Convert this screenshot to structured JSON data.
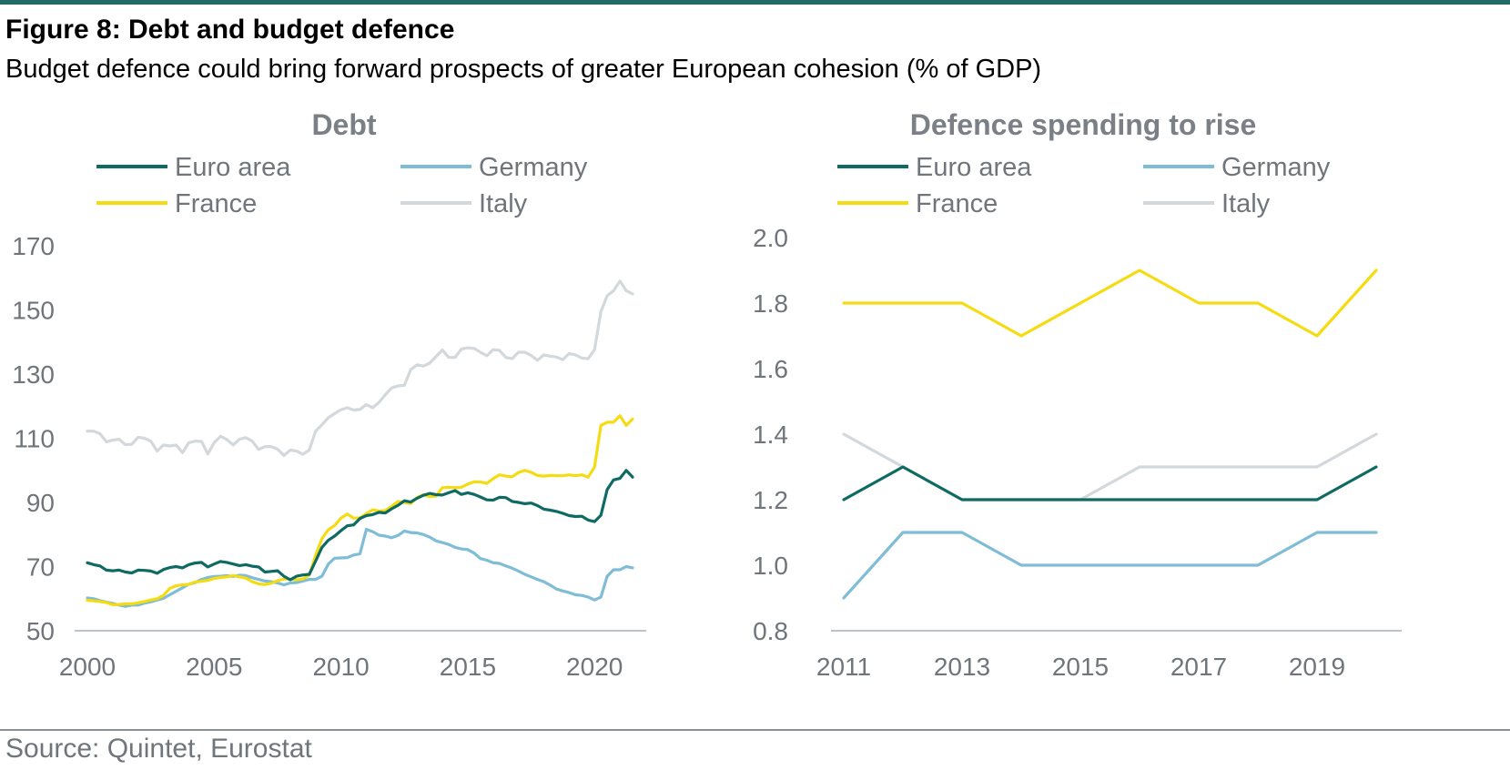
{
  "header": {
    "title": "Figure 8: Debt and budget defence",
    "subtitle": "Budget defence could bring forward prospects of greater European cohesion (% of GDP)"
  },
  "footer": {
    "source": "Source: Quintet, Eurostat"
  },
  "colors": {
    "accent_bar": "#1f6b66",
    "euro_area": "#0f6a63",
    "germany": "#7fbcd6",
    "france": "#f5dc12",
    "italy": "#d3d8dc",
    "text_gray": "#6f757b",
    "axis": "#bfc4c8"
  },
  "chart_data": [
    {
      "type": "line",
      "title": "Debt",
      "legend_position": "top",
      "grid": false,
      "xlim": [
        2000,
        2021.5
      ],
      "ylim": [
        50,
        170
      ],
      "x_ticks": [
        2000,
        2005,
        2010,
        2015,
        2020
      ],
      "y_ticks": [
        50,
        70,
        90,
        110,
        130,
        150,
        170
      ],
      "x": [
        2000.0,
        2000.25,
        2000.5,
        2000.75,
        2001.0,
        2001.25,
        2001.5,
        2001.75,
        2002.0,
        2002.25,
        2002.5,
        2002.75,
        2003.0,
        2003.25,
        2003.5,
        2003.75,
        2004.0,
        2004.25,
        2004.5,
        2004.75,
        2005.0,
        2005.25,
        2005.5,
        2005.75,
        2006.0,
        2006.25,
        2006.5,
        2006.75,
        2007.0,
        2007.25,
        2007.5,
        2007.75,
        2008.0,
        2008.25,
        2008.5,
        2008.75,
        2009.0,
        2009.25,
        2009.5,
        2009.75,
        2010.0,
        2010.25,
        2010.5,
        2010.75,
        2011.0,
        2011.25,
        2011.5,
        2011.75,
        2012.0,
        2012.25,
        2012.5,
        2012.75,
        2013.0,
        2013.25,
        2013.5,
        2013.75,
        2014.0,
        2014.25,
        2014.5,
        2014.75,
        2015.0,
        2015.25,
        2015.5,
        2015.75,
        2016.0,
        2016.25,
        2016.5,
        2016.75,
        2017.0,
        2017.25,
        2017.5,
        2017.75,
        2018.0,
        2018.25,
        2018.5,
        2018.75,
        2019.0,
        2019.25,
        2019.5,
        2019.75,
        2020.0,
        2020.25,
        2020.5,
        2020.75,
        2021.0,
        2021.25,
        2021.5
      ],
      "series": [
        {
          "name": "Euro area",
          "color": "#0f6a63",
          "values": [
            71.2,
            70.6,
            70.2,
            68.9,
            68.7,
            68.9,
            68.3,
            68.0,
            68.9,
            68.8,
            68.6,
            67.9,
            69.1,
            69.7,
            70.0,
            69.6,
            70.6,
            71.1,
            71.3,
            69.9,
            70.8,
            71.6,
            71.3,
            70.8,
            70.3,
            70.6,
            70.1,
            69.9,
            68.3,
            68.5,
            68.7,
            67.0,
            65.9,
            67.0,
            67.4,
            67.6,
            71.7,
            76.0,
            78.2,
            79.5,
            81.2,
            82.7,
            83.0,
            85.0,
            85.9,
            86.2,
            86.9,
            86.7,
            88.0,
            89.1,
            90.5,
            90.1,
            91.3,
            92.2,
            92.8,
            92.4,
            92.3,
            93.0,
            93.7,
            92.5,
            93.0,
            92.5,
            91.7,
            90.8,
            90.7,
            91.6,
            91.5,
            90.3,
            90.0,
            89.6,
            89.8,
            89.0,
            87.9,
            87.6,
            87.2,
            86.6,
            85.9,
            85.6,
            85.7,
            84.5,
            84.0,
            86.0,
            94.0,
            97.0,
            97.5,
            100.0,
            97.9
          ]
        },
        {
          "name": "Germany",
          "color": "#7fbcd6",
          "values": [
            60.2,
            60.0,
            59.4,
            58.9,
            58.5,
            58.0,
            57.6,
            58.0,
            58.0,
            58.6,
            59.0,
            59.6,
            60.1,
            61.2,
            62.3,
            63.4,
            64.5,
            65.0,
            66.0,
            66.6,
            66.9,
            67.0,
            67.2,
            66.9,
            67.3,
            67.2,
            66.5,
            66.0,
            65.5,
            65.3,
            64.9,
            64.3,
            64.9,
            65.0,
            65.5,
            66.0,
            66.0,
            67.0,
            70.8,
            72.6,
            72.7,
            72.8,
            73.6,
            74.0,
            81.6,
            80.9,
            79.8,
            79.5,
            79.0,
            79.7,
            81.1,
            80.6,
            80.5,
            80.0,
            79.2,
            78.0,
            77.5,
            76.9,
            76.0,
            75.5,
            75.3,
            74.2,
            72.5,
            72.0,
            71.2,
            71.0,
            70.2,
            69.5,
            68.6,
            67.6,
            66.8,
            66.0,
            65.3,
            64.2,
            63.0,
            62.4,
            61.9,
            61.2,
            61.0,
            60.5,
            59.6,
            60.5,
            67.0,
            69.0,
            69.0,
            70.0,
            69.6
          ]
        },
        {
          "name": "France",
          "color": "#f5dc12",
          "values": [
            59.5,
            59.3,
            59.1,
            58.8,
            58.1,
            58.2,
            58.4,
            58.4,
            58.7,
            59.1,
            59.6,
            60.0,
            61.0,
            63.2,
            64.0,
            64.3,
            64.4,
            65.2,
            65.4,
            65.7,
            66.3,
            66.6,
            66.8,
            67.2,
            66.8,
            66.4,
            65.3,
            64.6,
            64.4,
            64.8,
            65.6,
            66.1,
            66.1,
            65.9,
            66.1,
            67.4,
            73.5,
            78.7,
            81.5,
            82.8,
            85.1,
            86.4,
            85.1,
            85.2,
            86.5,
            87.7,
            87.3,
            87.5,
            88.8,
            90.3,
            90.0,
            89.6,
            91.5,
            92.4,
            91.8,
            92.0,
            94.6,
            94.7,
            94.6,
            94.7,
            95.7,
            96.4,
            96.4,
            95.9,
            97.4,
            98.6,
            98.2,
            98.0,
            99.3,
            100.0,
            99.4,
            98.4,
            98.2,
            98.4,
            98.3,
            98.3,
            98.6,
            98.3,
            98.6,
            97.9,
            101.0,
            114.0,
            115.0,
            115.0,
            117.0,
            114.0,
            116.0
          ]
        },
        {
          "name": "Italy",
          "color": "#d3d8dc",
          "values": [
            112.2,
            112.2,
            111.4,
            108.9,
            109.4,
            109.7,
            108.0,
            108.1,
            110.3,
            110.0,
            109.1,
            106.0,
            107.9,
            107.6,
            107.9,
            105.5,
            108.6,
            109.1,
            109.0,
            105.1,
            108.6,
            110.6,
            109.6,
            107.9,
            109.7,
            110.2,
            109.1,
            106.5,
            107.4,
            107.4,
            106.6,
            104.6,
            106.3,
            106.0,
            105.0,
            106.3,
            112.2,
            114.2,
            116.4,
            117.7,
            118.9,
            119.5,
            118.8,
            119.0,
            120.5,
            119.5,
            121.2,
            123.6,
            125.7,
            126.3,
            126.5,
            131.4,
            132.9,
            132.5,
            133.4,
            135.5,
            137.5,
            135.2,
            135.2,
            137.8,
            138.2,
            138.0,
            136.8,
            135.7,
            137.6,
            137.4,
            135.2,
            134.8,
            136.8,
            136.8,
            135.8,
            134.3,
            136.0,
            135.6,
            135.3,
            134.5,
            136.4,
            136.0,
            135.0,
            134.8,
            137.6,
            149.5,
            154.4,
            156.0,
            159.0,
            156.0,
            155.0
          ]
        }
      ]
    },
    {
      "type": "line",
      "title": "Defence spending to rise",
      "legend_position": "top",
      "grid": false,
      "xlim": [
        2011,
        2020
      ],
      "ylim": [
        0.8,
        2.0
      ],
      "x_ticks": [
        2011,
        2013,
        2015,
        2017,
        2019
      ],
      "y_ticks": [
        0.8,
        1.0,
        1.2,
        1.4,
        1.6,
        1.8,
        2.0
      ],
      "x": [
        2011,
        2012,
        2013,
        2014,
        2015,
        2016,
        2017,
        2018,
        2019,
        2020
      ],
      "series": [
        {
          "name": "Euro area",
          "color": "#0f6a63",
          "values": [
            1.2,
            1.3,
            1.2,
            1.2,
            1.2,
            1.2,
            1.2,
            1.2,
            1.2,
            1.3
          ]
        },
        {
          "name": "Germany",
          "color": "#7fbcd6",
          "values": [
            0.9,
            1.1,
            1.1,
            1.0,
            1.0,
            1.0,
            1.0,
            1.0,
            1.1,
            1.1
          ]
        },
        {
          "name": "France",
          "color": "#f5dc12",
          "values": [
            1.8,
            1.8,
            1.8,
            1.7,
            1.8,
            1.9,
            1.8,
            1.8,
            1.7,
            1.9
          ]
        },
        {
          "name": "Italy",
          "color": "#d3d8dc",
          "values": [
            1.4,
            1.3,
            1.2,
            1.2,
            1.2,
            1.3,
            1.3,
            1.3,
            1.3,
            1.4
          ]
        }
      ]
    }
  ]
}
